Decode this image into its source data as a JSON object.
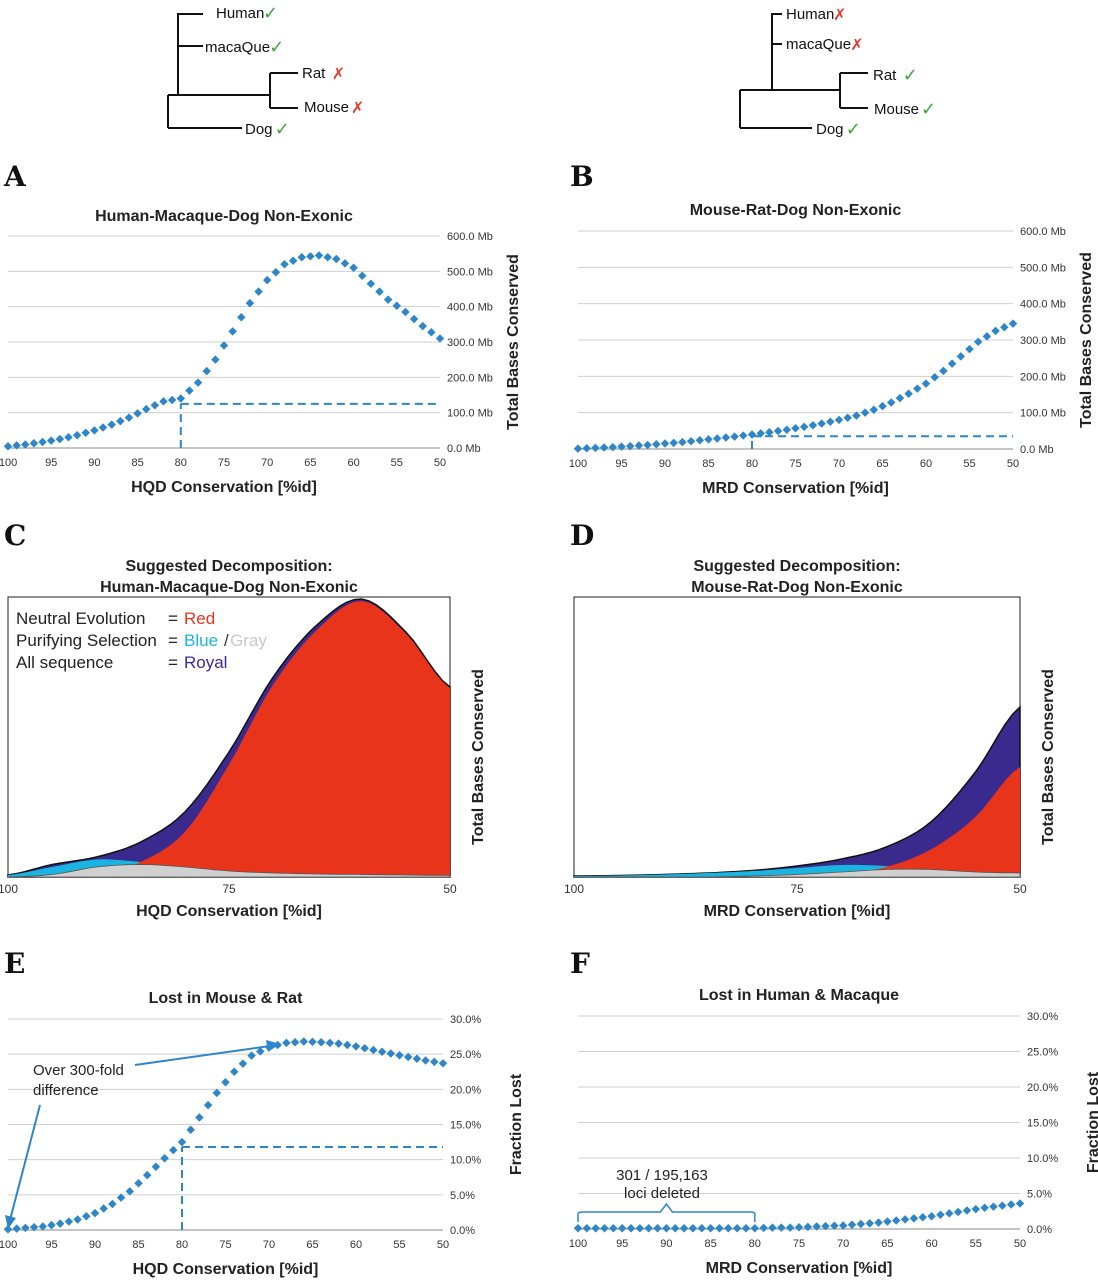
{
  "colors": {
    "dots": "#2e86c8",
    "red": "#e8341a",
    "royal": "#3a2a8e",
    "cyan": "#19b4e0",
    "gray": "#d0d0d0",
    "check": "#3aa53a",
    "cross": "#e33b2e"
  },
  "trees": [
    {
      "leaves": [
        {
          "name": "Human",
          "mark": "check"
        },
        {
          "name": "macaQue",
          "mark": "check"
        },
        {
          "name": "Rat",
          "mark": "cross"
        },
        {
          "name": "Mouse",
          "mark": "cross"
        },
        {
          "name": "Dog",
          "mark": "check"
        }
      ]
    },
    {
      "leaves": [
        {
          "name": "Human",
          "mark": "cross"
        },
        {
          "name": "macaQue",
          "mark": "cross"
        },
        {
          "name": "Rat",
          "mark": "check"
        },
        {
          "name": "Mouse",
          "mark": "check"
        },
        {
          "name": "Dog",
          "mark": "check"
        }
      ]
    }
  ],
  "marks": {
    "check": "✓",
    "cross": "✗"
  },
  "chart_data": [
    {
      "panel": "A",
      "type": "scatter",
      "title": "Human-Macaque-Dog Non-Exonic",
      "xlabel": "HQD Conservation [%id]",
      "ylabel": "Total Bases Conserved",
      "xlim": [
        100,
        50
      ],
      "ylim": [
        0,
        600
      ],
      "xticks": [
        "100",
        "95",
        "90",
        "85",
        "80",
        "75",
        "70",
        "65",
        "60",
        "55",
        "50"
      ],
      "yticks": [
        "0.0 Mb",
        "100.0 Mb",
        "200.0 Mb",
        "300.0 Mb",
        "400.0 Mb",
        "500.0 Mb",
        "600.0 Mb"
      ],
      "x": [
        100,
        98,
        96,
        94,
        92,
        90,
        88,
        86,
        84,
        82,
        80,
        78,
        76,
        74,
        72,
        70,
        68,
        66,
        64,
        62,
        60,
        58,
        56,
        54,
        52,
        50
      ],
      "y": [
        5,
        10,
        17,
        25,
        36,
        50,
        66,
        86,
        110,
        132,
        140,
        185,
        250,
        330,
        410,
        475,
        520,
        540,
        545,
        535,
        510,
        465,
        420,
        385,
        345,
        310
      ],
      "marker": {
        "x": 80,
        "y": 125
      }
    },
    {
      "panel": "B",
      "type": "scatter",
      "title": "Mouse-Rat-Dog Non-Exonic",
      "xlabel": "MRD Conservation [%id]",
      "ylabel": "Total Bases Conserved",
      "xlim": [
        100,
        50
      ],
      "ylim": [
        0,
        600
      ],
      "xticks": [
        "100",
        "95",
        "90",
        "85",
        "80",
        "75",
        "70",
        "65",
        "60",
        "55",
        "50"
      ],
      "yticks": [
        "0.0 Mb",
        "100.0 Mb",
        "200.0 Mb",
        "300.0 Mb",
        "400.0 Mb",
        "500.0 Mb",
        "600.0 Mb"
      ],
      "x": [
        100,
        98,
        96,
        94,
        92,
        90,
        88,
        86,
        84,
        82,
        80,
        78,
        76,
        74,
        72,
        70,
        68,
        66,
        64,
        62,
        60,
        58,
        56,
        54,
        52,
        50
      ],
      "y": [
        1,
        3,
        5,
        8,
        11,
        15,
        19,
        24,
        29,
        34,
        40,
        46,
        53,
        61,
        70,
        80,
        92,
        108,
        128,
        152,
        180,
        215,
        255,
        295,
        325,
        345
      ],
      "marker": {
        "x": 80,
        "y": 35
      }
    },
    {
      "panel": "C",
      "type": "area",
      "title": [
        "Suggested Decomposition:",
        "Human-Macaque-Dog Non-Exonic"
      ],
      "xlabel": "HQD Conservation [%id]",
      "ylabel": "Total Bases Conserved",
      "xlim": [
        100,
        50
      ],
      "ylim": [
        0,
        560
      ],
      "xticks": [
        "100",
        "75",
        "50"
      ],
      "x": [
        100,
        95,
        90,
        85,
        80,
        75,
        70,
        65,
        60,
        55,
        50
      ],
      "series": [
        {
          "name": "All sequence",
          "values": [
            4,
            25,
            40,
            70,
            130,
            250,
            400,
            505,
            556,
            490,
            380
          ]
        },
        {
          "name": "Neutral Evolution",
          "values": [
            0,
            0,
            5,
            30,
            90,
            225,
            385,
            495,
            552,
            487,
            378
          ]
        },
        {
          "name": "Purifying Selection (Blue)",
          "values": [
            4,
            20,
            35,
            30,
            20,
            12,
            8,
            6,
            5,
            4,
            3
          ]
        },
        {
          "name": "Purifying Selection (Gray)",
          "values": [
            0,
            5,
            20,
            25,
            20,
            12,
            8,
            6,
            5,
            4,
            3
          ]
        }
      ],
      "legend": [
        {
          "label": "Neutral Evolution",
          "eq": "= ",
          "value": "Red",
          "color": "#e8341a"
        },
        {
          "label": "Purifying Selection",
          "eq": "= ",
          "value": "Blue",
          "value2": "Gray",
          "color": "#19b4e0",
          "color2": "#c8c8c8"
        },
        {
          "label": "All sequence",
          "eq": "= ",
          "value": "Royal",
          "color": "#3a2a8e"
        }
      ]
    },
    {
      "panel": "D",
      "type": "area",
      "title": [
        "Suggested Decomposition:",
        "Mouse-Rat-Dog Non-Exonic"
      ],
      "xlabel": "MRD Conservation [%id]",
      "ylabel": "Total Bases Conserved",
      "xlim": [
        100,
        50
      ],
      "ylim": [
        0,
        560
      ],
      "xticks": [
        "100",
        "75",
        "50"
      ],
      "x": [
        100,
        95,
        90,
        85,
        80,
        75,
        70,
        65,
        60,
        55,
        50
      ],
      "series": [
        {
          "name": "All sequence",
          "values": [
            2,
            3,
            5,
            8,
            13,
            22,
            36,
            60,
            110,
            210,
            340
          ]
        },
        {
          "name": "Neutral Evolution",
          "values": [
            0,
            0,
            0,
            0,
            0,
            0,
            5,
            20,
            55,
            120,
            220
          ]
        },
        {
          "name": "Purifying Selection (Blue)",
          "values": [
            2,
            3,
            5,
            8,
            12,
            18,
            24,
            22,
            15,
            10,
            8
          ]
        },
        {
          "name": "Purifying Selection (Gray)",
          "values": [
            0,
            0,
            0,
            0,
            2,
            5,
            10,
            15,
            15,
            10,
            8
          ]
        }
      ]
    },
    {
      "panel": "E",
      "type": "scatter",
      "title": "Lost in Mouse & Rat",
      "xlabel": "HQD Conservation [%id]",
      "ylabel": "Fraction Lost",
      "xlim": [
        100,
        50
      ],
      "ylim": [
        0,
        30
      ],
      "xticks": [
        "100",
        "95",
        "90",
        "85",
        "80",
        "75",
        "70",
        "65",
        "60",
        "55",
        "50"
      ],
      "yticks": [
        "0.0%",
        "5.0%",
        "10.0%",
        "15.0%",
        "20.0%",
        "25.0%",
        "30.0%"
      ],
      "x": [
        100,
        98,
        96,
        94,
        92,
        90,
        88,
        86,
        84,
        82,
        80,
        78,
        76,
        74,
        72,
        70,
        68,
        66,
        64,
        62,
        60,
        58,
        56,
        54,
        52,
        50
      ],
      "y": [
        0.1,
        0.3,
        0.5,
        0.9,
        1.5,
        2.4,
        3.7,
        5.5,
        7.8,
        10.2,
        12.5,
        16.0,
        19.5,
        22.5,
        24.8,
        26.0,
        26.6,
        26.8,
        26.7,
        26.5,
        26.1,
        25.6,
        25.1,
        24.6,
        24.1,
        23.7
      ],
      "marker": {
        "x": 80,
        "y": 11.8
      },
      "annotation": [
        "Over 300-fold",
        "difference"
      ]
    },
    {
      "panel": "F",
      "type": "scatter",
      "title": "Lost in Human & Macaque",
      "xlabel": "MRD Conservation [%id]",
      "ylabel": "Fraction Lost",
      "xlim": [
        100,
        50
      ],
      "ylim": [
        0,
        30
      ],
      "xticks": [
        "100",
        "95",
        "90",
        "85",
        "80",
        "75",
        "70",
        "65",
        "60",
        "55",
        "50"
      ],
      "yticks": [
        "0.0%",
        "5.0%",
        "10.0%",
        "15.0%",
        "20.0%",
        "25.0%",
        "30.0%"
      ],
      "x": [
        100,
        98,
        96,
        94,
        92,
        90,
        88,
        86,
        84,
        82,
        80,
        78,
        76,
        74,
        72,
        70,
        68,
        66,
        64,
        62,
        60,
        58,
        56,
        54,
        52,
        50
      ],
      "y": [
        0.1,
        0.1,
        0.1,
        0.1,
        0.1,
        0.1,
        0.1,
        0.1,
        0.1,
        0.1,
        0.1,
        0.2,
        0.2,
        0.3,
        0.4,
        0.5,
        0.7,
        0.9,
        1.2,
        1.5,
        1.8,
        2.2,
        2.6,
        3.0,
        3.3,
        3.6
      ],
      "annotation": [
        "301 / 195,163",
        "loci deleted"
      ]
    }
  ]
}
